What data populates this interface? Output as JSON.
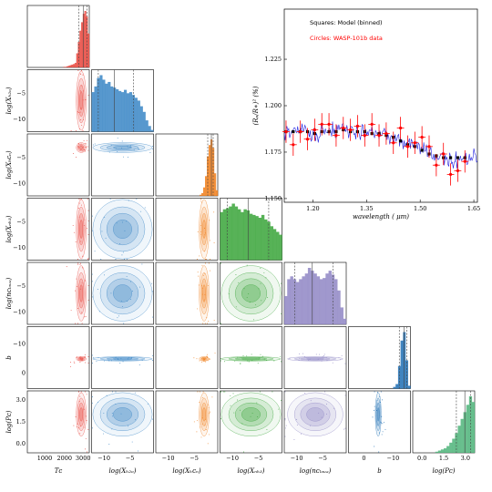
{
  "chart_data": [
    {
      "type": "corner",
      "parameters": [
        {
          "key": "Tc",
          "label": "Tᴄ"
        },
        {
          "key": "XH2O",
          "label": "log(Xₕ₂ₒ)"
        },
        {
          "key": "XHCN",
          "label": "log(Xₕᴄₙ)"
        },
        {
          "key": "XNH3",
          "label": "log(Xₙₕ₃)"
        },
        {
          "key": "ncloud",
          "label": "log(nᴄₗₒᵤₔ)"
        },
        {
          "key": "b",
          "label": "b"
        },
        {
          "key": "Pc",
          "label": "log(Pᴄ)"
        }
      ],
      "tick_labels": {
        "Tc": [
          "1000",
          "2000",
          "3000"
        ],
        "XH2O": [
          "−10",
          "−5"
        ],
        "XHCN": [
          "−10",
          "−5"
        ],
        "XNH3": [
          "−10",
          "−5"
        ],
        "ncloud": [
          "−10",
          "−5"
        ],
        "b": [
          "0",
          "−10"
        ],
        "Pc": [
          "0.0",
          "1.5",
          "3.0"
        ]
      },
      "colors": {
        "Tc": "#e8453c",
        "XH2O": "#3a86c6",
        "XHCN": "#f07f1c",
        "XNH3": "#3aa53a",
        "ncloud": "#8f86c4",
        "b": "#1f6fb4",
        "Pc": "#4fb47a"
      },
      "marginals": {
        "Tc": [
          0,
          0,
          0,
          0,
          0,
          0,
          0,
          0,
          0,
          0,
          0,
          0,
          0,
          0,
          0,
          0,
          0,
          0,
          0,
          0,
          0,
          0,
          0.01,
          0.01,
          0.02,
          0.03,
          0.04,
          0.05,
          0.06,
          0.08,
          0.25,
          0.45,
          0.65,
          0.8,
          0.95,
          1.0,
          0.9,
          0.6
        ],
        "XH2O": [
          0.7,
          0.8,
          0.95,
          1.0,
          0.92,
          0.85,
          0.88,
          0.8,
          0.78,
          0.75,
          0.72,
          0.7,
          0.74,
          0.68,
          0.7,
          0.65,
          0.6,
          0.55,
          0.45,
          0.35,
          0.2,
          0.1,
          0.03
        ],
        "XHCN": [
          0,
          0,
          0,
          0,
          0,
          0,
          0,
          0,
          0,
          0,
          0,
          0,
          0,
          0,
          0,
          0,
          0,
          0,
          0,
          0,
          0,
          0,
          0,
          0,
          0.02,
          0.05,
          0.15,
          0.35,
          0.7,
          0.9,
          1.0,
          0.85,
          0.4,
          0.1
        ],
        "XNH3": [
          0.85,
          0.9,
          0.92,
          0.95,
          1.0,
          0.95,
          0.9,
          0.85,
          0.9,
          0.88,
          0.82,
          0.8,
          0.78,
          0.75,
          0.8,
          0.72,
          0.68,
          0.6,
          0.55,
          0.5,
          0.45
        ],
        "ncloud": [
          0.5,
          0.8,
          0.85,
          0.8,
          0.75,
          0.8,
          0.85,
          0.9,
          1.0,
          0.95,
          0.9,
          0.85,
          0.8,
          0.82,
          0.9,
          0.95,
          0.88,
          0.8,
          0.6,
          0.3,
          0.1
        ],
        "b": [
          0,
          0,
          0,
          0,
          0,
          0,
          0,
          0,
          0,
          0,
          0,
          0,
          0,
          0,
          0,
          0,
          0,
          0,
          0.03,
          0.08,
          0.4,
          0.85,
          1.0,
          0.5,
          0.05
        ],
        "Pc": [
          0,
          0,
          0,
          0,
          0,
          0,
          0,
          0,
          0.02,
          0.04,
          0.06,
          0.08,
          0.12,
          0.18,
          0.25,
          0.35,
          0.48,
          0.6,
          0.72,
          0.85,
          1.0,
          0.9
        ]
      }
    },
    {
      "type": "line",
      "xlabel": "wavelength ( μm)",
      "ylabel": "(Rₚ/R∗)² (%)",
      "xlim": [
        1.12,
        1.66
      ],
      "ylim": [
        1.148,
        1.252
      ],
      "xticks": [
        "1.20",
        "1.35",
        "1.50",
        "1.65"
      ],
      "yticks": [
        "1.150",
        "1.175",
        "1.200",
        "1.225"
      ],
      "legend": [
        {
          "label": "Squares: Model (binned)",
          "color": "#000000"
        },
        {
          "label": "Circles: WASP-101b data",
          "color": "#ff0000"
        }
      ],
      "series": [
        {
          "name": "Squares: Model (binned)",
          "x": [
            1.125,
            1.145,
            1.165,
            1.185,
            1.205,
            1.225,
            1.245,
            1.265,
            1.285,
            1.305,
            1.325,
            1.345,
            1.365,
            1.385,
            1.405,
            1.425,
            1.445,
            1.465,
            1.485,
            1.505,
            1.525,
            1.545,
            1.565,
            1.585,
            1.605,
            1.625
          ],
          "y": [
            1.186,
            1.186,
            1.186,
            1.186,
            1.185,
            1.186,
            1.186,
            1.186,
            1.187,
            1.186,
            1.186,
            1.186,
            1.185,
            1.185,
            1.184,
            1.183,
            1.181,
            1.179,
            1.178,
            1.176,
            1.174,
            1.173,
            1.172,
            1.172,
            1.172,
            1.172
          ]
        },
        {
          "name": "Circles: WASP-101b data",
          "x": [
            1.125,
            1.145,
            1.165,
            1.185,
            1.205,
            1.225,
            1.245,
            1.265,
            1.285,
            1.305,
            1.325,
            1.345,
            1.365,
            1.385,
            1.405,
            1.425,
            1.445,
            1.465,
            1.485,
            1.505,
            1.525,
            1.545,
            1.565,
            1.585,
            1.605,
            1.625
          ],
          "y": [
            1.186,
            1.179,
            1.186,
            1.182,
            1.187,
            1.19,
            1.19,
            1.184,
            1.188,
            1.187,
            1.189,
            1.184,
            1.19,
            1.184,
            1.185,
            1.18,
            1.188,
            1.178,
            1.18,
            1.183,
            1.178,
            1.168,
            1.174,
            1.163,
            1.165,
            1.17
          ],
          "yerr": [
            0.006,
            0.006,
            0.006,
            0.006,
            0.006,
            0.006,
            0.006,
            0.006,
            0.006,
            0.006,
            0.006,
            0.006,
            0.006,
            0.006,
            0.006,
            0.006,
            0.006,
            0.006,
            0.006,
            0.006,
            0.006,
            0.006,
            0.006,
            0.006,
            0.006,
            0.006
          ]
        }
      ]
    }
  ]
}
